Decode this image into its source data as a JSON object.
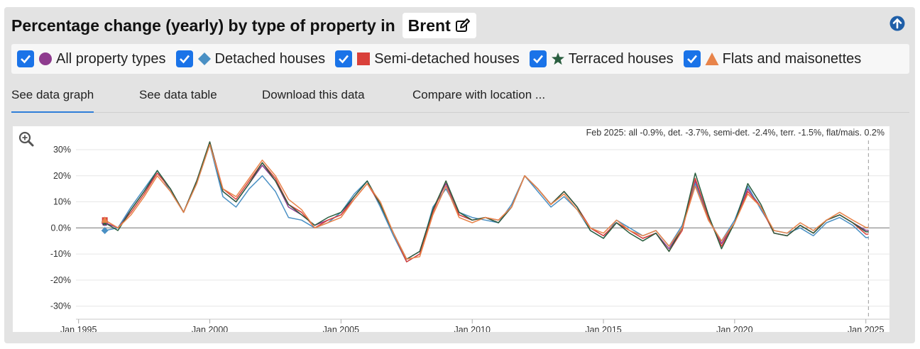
{
  "header": {
    "title": "Percentage change (yearly) by type of property in",
    "location": "Brent"
  },
  "legend": [
    {
      "label": "All property types",
      "color": "#8e3b8e",
      "symbol": "circle"
    },
    {
      "label": "Detached houses",
      "color": "#4a90c4",
      "symbol": "diamond"
    },
    {
      "label": "Semi-detached houses",
      "color": "#d9403a",
      "symbol": "square"
    },
    {
      "label": "Terraced houses",
      "color": "#2a5e3f",
      "symbol": "star"
    },
    {
      "label": "Flats and maisonettes",
      "color": "#e8844a",
      "symbol": "triangle"
    }
  ],
  "tabs": [
    "See data graph",
    "See data table",
    "Download this data",
    "Compare with location ..."
  ],
  "chart_data": {
    "type": "line",
    "annotation": "Feb 2025: all -0.9%, det. -3.7%, semi-det. -2.4%, terr. -1.5%, flat/mais. 0.2%",
    "x_ticks": [
      "Jan 1995",
      "Jan 2000",
      "Jan 2005",
      "Jan 2010",
      "Jan 2015",
      "Jan 2020",
      "Jan 2025"
    ],
    "y_ticks": [
      "30%",
      "20%",
      "10%",
      "0.0%",
      "-10%",
      "-20%",
      "-30%"
    ],
    "xlim": [
      1994.9,
      2025.9
    ],
    "ylim": [
      -35,
      33
    ],
    "x": [
      1996.0,
      1996.5,
      1997.0,
      1997.5,
      1998.0,
      1998.5,
      1999.0,
      1999.5,
      2000.0,
      2000.5,
      2001.0,
      2001.5,
      2002.0,
      2002.5,
      2003.0,
      2003.5,
      2004.0,
      2004.5,
      2005.0,
      2005.5,
      2006.0,
      2006.5,
      2007.0,
      2007.5,
      2008.0,
      2008.5,
      2009.0,
      2009.5,
      2010.0,
      2010.5,
      2011.0,
      2011.5,
      2012.0,
      2012.5,
      2013.0,
      2013.5,
      2014.0,
      2014.5,
      2015.0,
      2015.5,
      2016.0,
      2016.5,
      2017.0,
      2017.5,
      2018.0,
      2018.5,
      2019.0,
      2019.5,
      2020.0,
      2020.5,
      2021.0,
      2021.5,
      2022.0,
      2022.5,
      2023.0,
      2023.5,
      2024.0,
      2024.5,
      2025.0,
      2025.1
    ],
    "series": [
      {
        "name": "All property types",
        "values": [
          2,
          0,
          7,
          14,
          21,
          15,
          6,
          18,
          32,
          14,
          10,
          17,
          24,
          18,
          8,
          5,
          1,
          3,
          5,
          12,
          18,
          9,
          -2,
          -12,
          -9,
          7,
          17,
          5,
          3,
          4,
          2,
          8,
          20,
          15,
          9,
          14,
          8,
          0,
          -3,
          2,
          -1,
          -4,
          -2,
          -8,
          0,
          18,
          4,
          -6,
          2,
          15,
          8,
          -2,
          -3,
          1,
          -2,
          3,
          5,
          2,
          -0.9,
          -0.9
        ]
      },
      {
        "name": "Detached houses",
        "values": [
          -1,
          0,
          8,
          15,
          22,
          14,
          6,
          17,
          32,
          12,
          8,
          15,
          20,
          14,
          4,
          3,
          0,
          2,
          6,
          13,
          18,
          8,
          -3,
          -13,
          -10,
          8,
          15,
          6,
          4,
          3,
          2,
          9,
          20,
          14,
          8,
          12,
          7,
          -1,
          -4,
          3,
          0,
          -3,
          -1,
          -7,
          1,
          17,
          3,
          -5,
          3,
          16,
          7,
          -1,
          -2,
          0,
          -3,
          2,
          4,
          1,
          -3.7,
          -3.7
        ]
      },
      {
        "name": "Semi-detached houses",
        "values": [
          3,
          0,
          6,
          13,
          21,
          15,
          6,
          18,
          33,
          15,
          11,
          18,
          25,
          19,
          9,
          6,
          0,
          3,
          5,
          11,
          17,
          9,
          -2,
          -13,
          -10,
          6,
          18,
          5,
          3,
          4,
          3,
          8,
          20,
          15,
          9,
          14,
          8,
          0,
          -3,
          2,
          -1,
          -4,
          -2,
          -9,
          -1,
          19,
          4,
          -7,
          2,
          14,
          8,
          -2,
          -3,
          1,
          -2,
          3,
          5,
          2,
          -2.4,
          -2.4
        ]
      },
      {
        "name": "Terraced houses",
        "values": [
          2,
          -1,
          7,
          14,
          22,
          15,
          6,
          18,
          33,
          14,
          10,
          17,
          25,
          18,
          9,
          5,
          1,
          4,
          6,
          12,
          18,
          9,
          -2,
          -12,
          -9,
          7,
          18,
          6,
          3,
          4,
          2,
          8,
          20,
          15,
          9,
          14,
          8,
          -1,
          -4,
          2,
          -2,
          -5,
          -2,
          -9,
          0,
          21,
          5,
          -8,
          2,
          17,
          9,
          -2,
          -3,
          1,
          -2,
          3,
          5,
          2,
          -1.5,
          -1.5
        ]
      },
      {
        "name": "Flats and maisonettes",
        "values": [
          3,
          0,
          5,
          12,
          20,
          14,
          6,
          17,
          32,
          15,
          12,
          19,
          26,
          20,
          11,
          7,
          0,
          2,
          4,
          11,
          17,
          10,
          -2,
          -12,
          -11,
          5,
          16,
          4,
          2,
          4,
          3,
          8,
          20,
          15,
          9,
          13,
          7,
          0,
          -2,
          3,
          -1,
          -3,
          -1,
          -7,
          0,
          16,
          3,
          -5,
          2,
          13,
          8,
          -1,
          -2,
          2,
          -1,
          3,
          6,
          3,
          0.2,
          0.2
        ]
      }
    ]
  }
}
